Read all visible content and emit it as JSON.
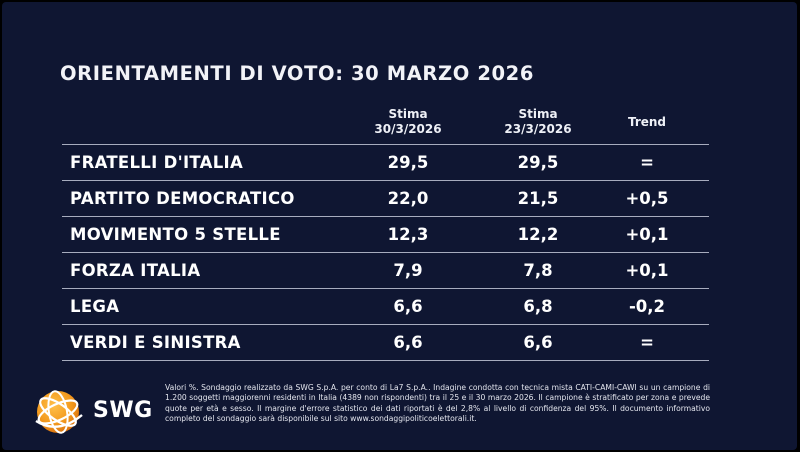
{
  "title": "ORIENTAMENTI DI VOTO: 30 MARZO 2026",
  "columns": {
    "current": {
      "line1": "Stima",
      "line2": "30/3/2026"
    },
    "previous": {
      "line1": "Stima",
      "line2": "23/3/2026"
    },
    "trend": "Trend"
  },
  "rows": [
    {
      "party": "FRATELLI D'ITALIA",
      "current": "29,5",
      "previous": "29,5",
      "trend": "="
    },
    {
      "party": "PARTITO DEMOCRATICO",
      "current": "22,0",
      "previous": "21,5",
      "trend": "+0,5"
    },
    {
      "party": "MOVIMENTO 5 STELLE",
      "current": "12,3",
      "previous": "12,2",
      "trend": "+0,1"
    },
    {
      "party": "FORZA ITALIA",
      "current": "7,9",
      "previous": "7,8",
      "trend": "+0,1"
    },
    {
      "party": "LEGA",
      "current": "6,6",
      "previous": "6,8",
      "trend": "-0,2"
    },
    {
      "party": "VERDI E SINISTRA",
      "current": "6,6",
      "previous": "6,6",
      "trend": "="
    }
  ],
  "logo": {
    "text": "SWG"
  },
  "footnote": "Valori %. Sondaggio realizzato da SWG S.p.A. per conto di La7 S.p.A.. Indagine condotta con tecnica mista CATI-CAMI-CAWI su un campione di 1.200 soggetti maggiorenni residenti in Italia (4389 non rispondenti) tra il 25 e il 30 marzo 2026. Il campione è stratificato per zona e prevede quote per età e sesso. Il margine d'errore statistico dei dati riportati è del 2,8% al livello di confidenza del 95%. Il documento informativo completo del sondaggio sarà disponibile sul sito www.sondaggipoliticoelettorali.it.",
  "colors": {
    "background": "#0f1632",
    "text": "#ffffff",
    "rule": "#a7acbe",
    "logo_orange": "#f39a1e"
  }
}
